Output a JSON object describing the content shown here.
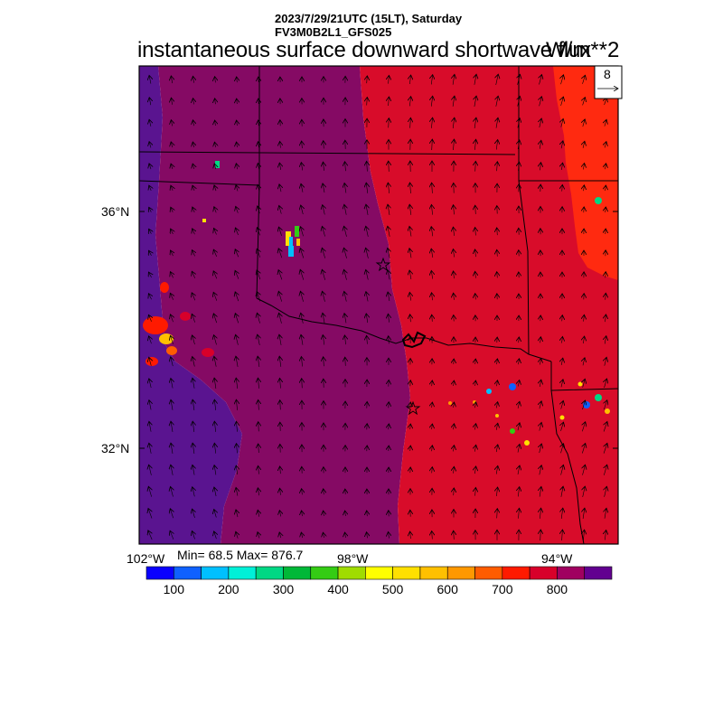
{
  "header": {
    "datetime": "2023/7/29/21UTC (15LT), Saturday",
    "model": "FV3M0B2L1_GFS025",
    "title": "instantaneous surface downward shortwave flux",
    "units": "W/m**2"
  },
  "reference_vector": {
    "label": "8"
  },
  "axes": {
    "lat_labels": [
      "36°N",
      "32°N"
    ],
    "lon_labels": [
      "102°W",
      "98°W",
      "94°W"
    ]
  },
  "stats": {
    "text": "Min= 68.5 Max= 876.7",
    "min": 68.5,
    "max": 876.7
  },
  "colorbar": {
    "colors": [
      "#0a00ff",
      "#0f61ff",
      "#00c0ff",
      "#00f0d8",
      "#00d884",
      "#00b838",
      "#34cc14",
      "#a0dc00",
      "#ffff00",
      "#ffe000",
      "#ffc000",
      "#ff9800",
      "#ff5c00",
      "#ff1a00",
      "#d8002a",
      "#a00060",
      "#620090"
    ],
    "tick_labels": [
      "100",
      "200",
      "300",
      "400",
      "500",
      "600",
      "700",
      "800"
    ]
  },
  "field": {
    "bands": [
      {
        "value": 850,
        "color": "#5a1490"
      },
      {
        "value": 800,
        "color": "#850a64"
      },
      {
        "value": 760,
        "color": "#d80c2a"
      },
      {
        "value": 720,
        "color": "#ff2a10"
      }
    ]
  },
  "markers": {
    "symbol": "star",
    "count": 2
  }
}
